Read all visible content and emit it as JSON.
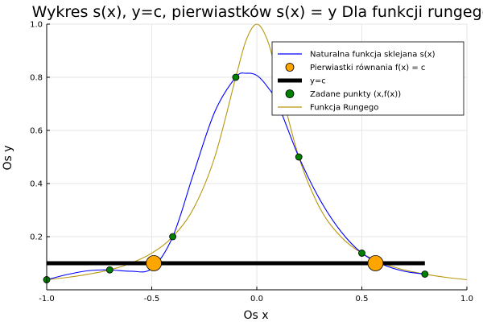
{
  "chart_data": {
    "type": "line",
    "title": "Wykres s(x), y=c, pierwiastków s(x) = y Dla funkcji rungego",
    "xlabel": "Os x",
    "ylabel": "Os y",
    "xlim": [
      -1.0,
      1.0
    ],
    "ylim": [
      0.0,
      1.0
    ],
    "xticks": [
      "-1.0",
      "-0.5",
      "0.0",
      "0.5",
      "1.0"
    ],
    "yticks": [
      "0.2",
      "0.4",
      "0.6",
      "0.8",
      "1.0"
    ],
    "grid": true,
    "legend_position": "top-right",
    "series": [
      {
        "name": "Naturalna funkcja sklejana s(x)",
        "kind": "line",
        "color": "#0000ff",
        "x": [
          -1.0,
          -0.9,
          -0.8,
          -0.7,
          -0.6,
          -0.5,
          -0.4,
          -0.3,
          -0.2,
          -0.1,
          -0.05,
          0.0,
          0.05,
          0.1,
          0.2,
          0.3,
          0.4,
          0.5,
          0.6,
          0.7,
          0.8
        ],
        "y": [
          0.038,
          0.058,
          0.072,
          0.075,
          0.07,
          0.08,
          0.2,
          0.44,
          0.67,
          0.8,
          0.815,
          0.807,
          0.765,
          0.7,
          0.5,
          0.34,
          0.22,
          0.138,
          0.095,
          0.07,
          0.059
        ]
      },
      {
        "name": "Pierwiastki równania f(x) = c",
        "kind": "scatter",
        "color": "#ffa500",
        "x": [
          -0.49,
          0.565
        ],
        "y": [
          0.1,
          0.1
        ]
      },
      {
        "name": "y=c",
        "kind": "line",
        "color": "#000000",
        "x": [
          -1.0,
          0.8
        ],
        "y": [
          0.1,
          0.1
        ]
      },
      {
        "name": "Zadane punkty (x,f(x))",
        "kind": "scatter",
        "color": "#008000",
        "x": [
          -1.0,
          -0.7,
          -0.4,
          -0.1,
          0.2,
          0.5,
          0.8
        ],
        "y": [
          0.038,
          0.075,
          0.2,
          0.8,
          0.5,
          0.138,
          0.059
        ]
      },
      {
        "name": "Funkcja Rungego",
        "kind": "line",
        "color": "#b8960c",
        "x": [
          -1.0,
          -0.9,
          -0.8,
          -0.7,
          -0.6,
          -0.5,
          -0.4,
          -0.3,
          -0.2,
          -0.1,
          -0.05,
          0.0,
          0.05,
          0.1,
          0.2,
          0.3,
          0.4,
          0.5,
          0.6,
          0.7,
          0.8,
          0.9,
          1.0
        ],
        "y": [
          0.038,
          0.047,
          0.059,
          0.075,
          0.1,
          0.138,
          0.2,
          0.308,
          0.5,
          0.8,
          0.941,
          1.0,
          0.941,
          0.8,
          0.5,
          0.308,
          0.2,
          0.138,
          0.1,
          0.075,
          0.059,
          0.047,
          0.038
        ]
      }
    ]
  }
}
